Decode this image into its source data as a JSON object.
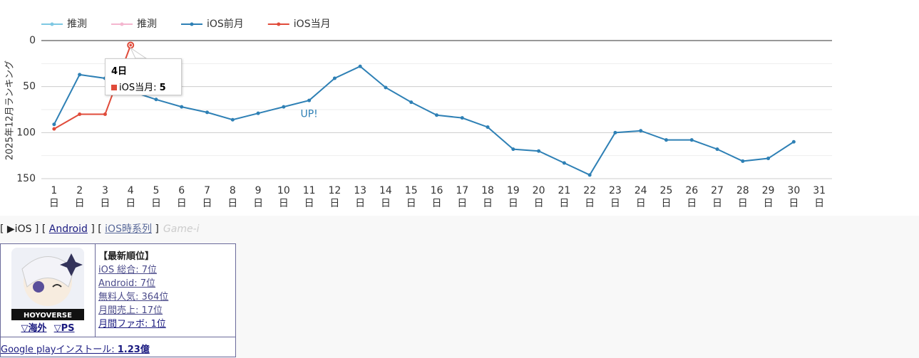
{
  "chart_data": {
    "type": "line",
    "y_label": "2025年12月ランキング",
    "categories": [
      "1日",
      "2日",
      "3日",
      "4日",
      "5日",
      "6日",
      "7日",
      "8日",
      "9日",
      "10日",
      "11日",
      "12日",
      "13日",
      "14日",
      "15日",
      "16日",
      "17日",
      "18日",
      "19日",
      "20日",
      "21日",
      "22日",
      "23日",
      "24日",
      "25日",
      "26日",
      "27日",
      "28日",
      "29日",
      "30日",
      "31日"
    ],
    "series": [
      {
        "name": "推測",
        "color": "#7ec8e3",
        "values": [
          null,
          null,
          null,
          null,
          null,
          null,
          null,
          null,
          null,
          null,
          null,
          null,
          null,
          null,
          null,
          null,
          null,
          null,
          null,
          null,
          null,
          null,
          null,
          null,
          null,
          null,
          null,
          null,
          null,
          null,
          null
        ]
      },
      {
        "name": "推測",
        "color": "#f4b6cf",
        "values": [
          null,
          null,
          null,
          null,
          null,
          null,
          null,
          null,
          null,
          null,
          null,
          null,
          null,
          null,
          null,
          null,
          null,
          null,
          null,
          null,
          null,
          null,
          null,
          null,
          null,
          null,
          null,
          null,
          null,
          null,
          null
        ]
      },
      {
        "name": "iOS前月",
        "color": "#2e80b5",
        "values": [
          91,
          37,
          41,
          55,
          64,
          72,
          78,
          86,
          79,
          72,
          65,
          41,
          28,
          51,
          67,
          81,
          84,
          94,
          118,
          120,
          133,
          146,
          100,
          98,
          108,
          108,
          118,
          131,
          128,
          110,
          null
        ]
      },
      {
        "name": "iOS当月",
        "color": "#e04b3a",
        "values": [
          96,
          80,
          80,
          5,
          null,
          null,
          null,
          null,
          null,
          null,
          null,
          null,
          null,
          null,
          null,
          null,
          null,
          null,
          null,
          null,
          null,
          null,
          null,
          null,
          null,
          null,
          null,
          null,
          null,
          null,
          null
        ]
      }
    ],
    "ylim": [
      0,
      150
    ],
    "y_inverted": true,
    "yticks": [
      0,
      50,
      100,
      150
    ],
    "minor_yticks": [
      25,
      75,
      125
    ],
    "grid": true,
    "legend": "top-left",
    "annotations": [
      {
        "text": "UP!",
        "category": 10,
        "y": 80
      }
    ],
    "tooltip": {
      "title": "4日",
      "text": "iOS当月: ",
      "value": 5
    }
  },
  "nav": [
    "[ ▶iOS ] [ ",
    "Android",
    " ] [ ",
    "iOS時系列",
    " ]",
    "Game-i"
  ],
  "info": {
    "icon_text": "HOYOVERSE",
    "links": [
      "▽海外",
      "▽PS"
    ],
    "heading": "【最新順位】",
    "ranks": [
      "iOS 総合: 7位",
      "Android: 7位",
      "無料人気: 364位",
      "月間売上: 17位",
      "月間ファボ: 1位"
    ],
    "install_label": "Google playインストール: ",
    "install_value": "1.23億"
  }
}
